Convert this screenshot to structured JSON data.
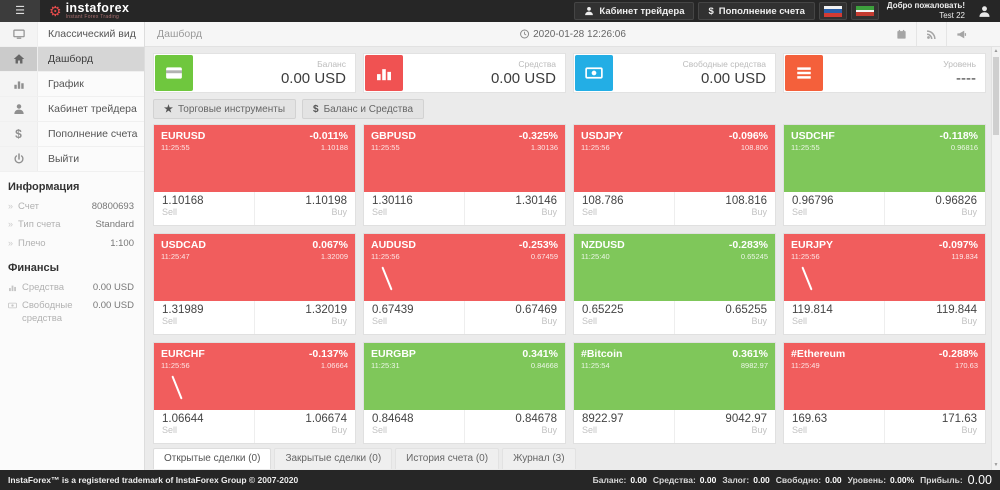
{
  "colors": {
    "tile_red": "#f15d5d",
    "tile_green": "#7fc75a",
    "stat_balance": "#6fc73e",
    "stat_funds": "#f05252",
    "stat_free": "#23aee5",
    "stat_level": "#f4603b",
    "topbar_bg": "#262626",
    "logo_accent": "#e84c4c"
  },
  "icons": {
    "hamburger": "☰",
    "gear": "⚙",
    "star": "★",
    "dollar": "$",
    "chevron": "»",
    "scroll_up": "▲",
    "scroll_down": "▼"
  },
  "header": {
    "logo_name": "instaforex",
    "logo_tagline": "Instant Forex Trading",
    "cabinet_label": "Кабинет трейдера",
    "deposit_label": "Пополнение счета",
    "welcome": "Добро пожаловать!",
    "username": "Test 22"
  },
  "sidebar": {
    "items": [
      {
        "id": "classic-view",
        "label": "Классический вид",
        "icon": "tv",
        "active": false
      },
      {
        "id": "dashboard",
        "label": "Дашборд",
        "icon": "home",
        "active": true
      },
      {
        "id": "chart",
        "label": "График",
        "icon": "chart",
        "active": false
      },
      {
        "id": "trader-cabinet",
        "label": "Кабинет трейдера",
        "icon": "person",
        "active": false
      },
      {
        "id": "deposit",
        "label": "Пополнение счета",
        "icon": "dollar",
        "active": false
      },
      {
        "id": "logout",
        "label": "Выйти",
        "icon": "power",
        "active": false
      }
    ],
    "info_title": "Информация",
    "info_rows": [
      {
        "label": "Счет",
        "value": "80800693"
      },
      {
        "label": "Тип счета",
        "value": "Standard"
      },
      {
        "label": "Плечо",
        "value": "1:100"
      }
    ],
    "fin_title": "Финансы",
    "fin_rows": [
      {
        "label": "Средства",
        "value": "0.00 USD",
        "icon": "chart"
      },
      {
        "label": "Свободные средства",
        "value": "0.00 USD",
        "icon": "banknote"
      }
    ]
  },
  "breadcrumb": {
    "title": "Дашборд",
    "timestamp": "2020-01-28 12:26:06",
    "icons": [
      "calendar",
      "rss",
      "megaphone"
    ]
  },
  "stats": [
    {
      "label": "Баланс",
      "value": "0.00 USD",
      "icon": "card",
      "color": "#6fc73e"
    },
    {
      "label": "Средства",
      "value": "0.00 USD",
      "icon": "chart",
      "color": "#f05252"
    },
    {
      "label": "Свободные средства",
      "value": "0.00 USD",
      "icon": "banknote",
      "color": "#23aee5"
    },
    {
      "label": "Уровень",
      "value": "----",
      "icon": "list",
      "color": "#f4603b"
    }
  ],
  "toolbar": {
    "instruments": "Торговые инструменты",
    "balance": "Баланс и Средства"
  },
  "tile_labels": {
    "sell": "Sell",
    "buy": "Buy"
  },
  "tiles": [
    {
      "symbol": "EURUSD",
      "time": "11:25:55",
      "pct": "-0.011%",
      "last": "1.10188",
      "sell": "1.10168",
      "buy": "1.10198",
      "color": "red",
      "spark": false
    },
    {
      "symbol": "GBPUSD",
      "time": "11:25:55",
      "pct": "-0.325%",
      "last": "1.30136",
      "sell": "1.30116",
      "buy": "1.30146",
      "color": "red",
      "spark": false
    },
    {
      "symbol": "USDJPY",
      "time": "11:25:56",
      "pct": "-0.096%",
      "last": "108.806",
      "sell": "108.786",
      "buy": "108.816",
      "color": "red",
      "spark": false
    },
    {
      "symbol": "USDCHF",
      "time": "11:25:55",
      "pct": "-0.118%",
      "last": "0.96816",
      "sell": "0.96796",
      "buy": "0.96826",
      "color": "green",
      "spark": false
    },
    {
      "symbol": "USDCAD",
      "time": "11:25:47",
      "pct": "0.067%",
      "last": "1.32009",
      "sell": "1.31989",
      "buy": "1.32019",
      "color": "red",
      "spark": false
    },
    {
      "symbol": "AUDUSD",
      "time": "11:25:56",
      "pct": "-0.253%",
      "last": "0.67459",
      "sell": "0.67439",
      "buy": "0.67469",
      "color": "red",
      "spark": true
    },
    {
      "symbol": "NZDUSD",
      "time": "11:25:40",
      "pct": "-0.283%",
      "last": "0.65245",
      "sell": "0.65225",
      "buy": "0.65255",
      "color": "green",
      "spark": false
    },
    {
      "symbol": "EURJPY",
      "time": "11:25:56",
      "pct": "-0.097%",
      "last": "119.834",
      "sell": "119.814",
      "buy": "119.844",
      "color": "red",
      "spark": true
    },
    {
      "symbol": "EURCHF",
      "time": "11:25:56",
      "pct": "-0.137%",
      "last": "1.06664",
      "sell": "1.06644",
      "buy": "1.06674",
      "color": "red",
      "spark": true
    },
    {
      "symbol": "EURGBP",
      "time": "11:25:31",
      "pct": "0.341%",
      "last": "0.84668",
      "sell": "0.84648",
      "buy": "0.84678",
      "color": "green",
      "spark": false
    },
    {
      "symbol": "#Bitcoin",
      "time": "11:25:54",
      "pct": "0.361%",
      "last": "8982.97",
      "sell": "8922.97",
      "buy": "9042.97",
      "color": "green",
      "spark": false
    },
    {
      "symbol": "#Ethereum",
      "time": "11:25:49",
      "pct": "-0.288%",
      "last": "170.63",
      "sell": "169.63",
      "buy": "171.63",
      "color": "red",
      "spark": false
    }
  ],
  "tabs": [
    {
      "label": "Открытые сделки (0)",
      "active": true
    },
    {
      "label": "Закрытые сделки (0)",
      "active": false
    },
    {
      "label": "История счета (0)",
      "active": false
    },
    {
      "label": "Журнал (3)",
      "active": false
    }
  ],
  "footer": {
    "trademark": "InstaForex™ is a registered trademark of InstaForex Group © 2007-2020",
    "pairs": [
      {
        "label": "Баланс:",
        "value": "0.00"
      },
      {
        "label": "Средства:",
        "value": "0.00"
      },
      {
        "label": "Залог:",
        "value": "0.00"
      },
      {
        "label": "Свободно:",
        "value": "0.00"
      },
      {
        "label": "Уровень:",
        "value": "0.00%"
      }
    ],
    "profit_label": "Прибыль:",
    "profit_value": "0.00"
  }
}
